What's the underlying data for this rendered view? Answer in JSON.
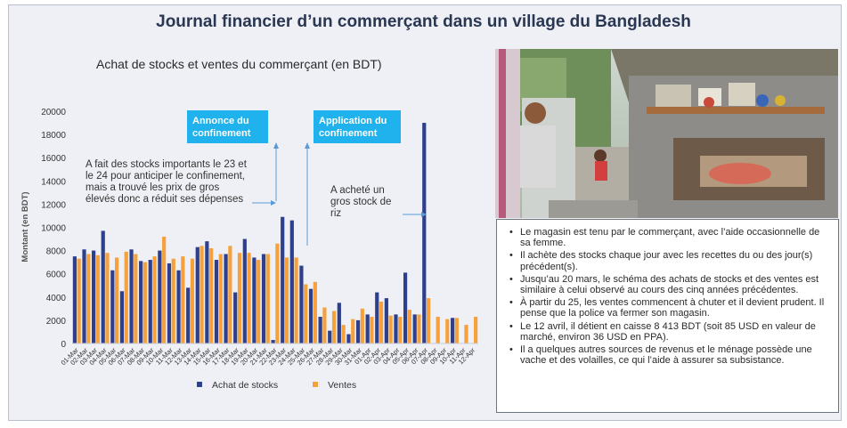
{
  "title": "Journal financier d’un commerçant dans un village du Bangladesh",
  "chart_data": {
    "type": "bar",
    "title": "Achat de stocks et ventes du commerçant (en BDT)",
    "ylabel": "Montant (en BDT)",
    "ylim": [
      0,
      20000
    ],
    "yticks": [
      0,
      2000,
      4000,
      6000,
      8000,
      10000,
      12000,
      14000,
      16000,
      18000,
      20000
    ],
    "ytick_labels": [
      "0",
      "2000",
      "4000",
      "6000",
      "8000",
      "10000",
      "12000",
      "14000",
      "16000",
      "18000",
      "20000"
    ],
    "categories": [
      "01-Mar",
      "02-Mar",
      "03-Mar",
      "04-Mar",
      "05-Mar",
      "06-Mar",
      "07-Mar",
      "08-Mar",
      "09-Mar",
      "10-Mar",
      "11-Mar",
      "12-Mar",
      "13-Mar",
      "14-Mar",
      "15-Mar",
      "16-Mar",
      "17-Mar",
      "18-Mar",
      "19-Mar",
      "20-Mar",
      "21-Mar",
      "22-Mar",
      "23-Mar",
      "24-Mar",
      "25-Mar",
      "26-Mar",
      "27-Mar",
      "28-Mar",
      "29-Mar",
      "30-Mar",
      "31-Mar",
      "01-Apr",
      "02-Apr",
      "03-Apr",
      "04-Apr",
      "05-Apr",
      "06-Apr",
      "07-Apr",
      "08-Apr",
      "09-Apr",
      "10-Apr",
      "11-Apr",
      "12-Apr"
    ],
    "legend_position": "bottom",
    "series": [
      {
        "name": "Achat de stocks",
        "color": "#2e3f8c",
        "values": [
          7500,
          8100,
          8000,
          9700,
          6300,
          4500,
          8100,
          7100,
          7200,
          8000,
          6900,
          6300,
          4800,
          8300,
          8800,
          7200,
          7700,
          4400,
          9000,
          7400,
          7700,
          300,
          10900,
          10600,
          6700,
          4700,
          2300,
          1100,
          3500,
          800,
          2000,
          2500,
          4400,
          3900,
          2500,
          6100,
          2500,
          19000,
          0,
          0,
          2200,
          0,
          0
        ]
      },
      {
        "name": "Ventes",
        "color": "#f4a13e",
        "values": [
          7300,
          7700,
          7600,
          7800,
          7400,
          7900,
          7700,
          7000,
          7500,
          9200,
          7300,
          7500,
          7300,
          8400,
          8200,
          7700,
          8400,
          7800,
          7800,
          7200,
          7700,
          8600,
          7400,
          7400,
          5100,
          5300,
          3100,
          2800,
          1600,
          2100,
          3000,
          2300,
          3600,
          2400,
          2300,
          2900,
          2500,
          3900,
          2300,
          2100,
          2200,
          1600,
          2300
        ]
      }
    ],
    "annotations": [
      {
        "type": "callout",
        "text": "Annonce du confinement"
      },
      {
        "type": "callout",
        "text": "Application du confinement"
      },
      {
        "type": "note",
        "text": "A fait des stocks importants le 23 et le 24 pour anticiper le confinement, mais a trouvé les prix de gros élevés donc a réduit ses dépenses"
      },
      {
        "type": "note",
        "text": "A acheté un gros stock de riz"
      }
    ]
  },
  "info_bullets": [
    "Le magasin est tenu par le commerçant, avec l’aide occasionnelle de sa femme.",
    "Il achète des stocks chaque jour avec les recettes du ou des jour(s) précédent(s).",
    "Jusqu’au 20 mars, le schéma des achats de stocks et des ventes est similaire à celui observé au cours des cinq années précédentes.",
    "À partir du 25, les ventes commencent à chuter et il devient prudent. Il pense que la police va fermer son magasin.",
    "Le 12 avril, il détient en caisse 8 413 BDT (soit 85 USD en valeur de marché, environ 36 USD en PPA).",
    "Il a quelques autres sources de revenus et le ménage possède une vache et des volailles, ce qui l’aide à assurer sa subsistance."
  ]
}
